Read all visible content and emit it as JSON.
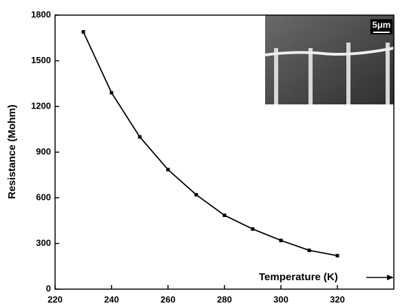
{
  "chart_data": {
    "type": "line",
    "x_label": "Temperature (K)",
    "y_label": "Resistance (Mohm)",
    "inset_label": "5μm",
    "x": [
      230,
      240,
      250,
      260,
      270,
      280,
      290,
      300,
      310,
      320
    ],
    "series": [
      {
        "color": "#000000",
        "values": [
          1690,
          1290,
          1000,
          785,
          620,
          485,
          395,
          320,
          255,
          220
        ]
      }
    ],
    "xlim": [
      220,
      340
    ],
    "xticks": [
      220,
      240,
      260,
      280,
      300,
      320
    ],
    "ylim": [
      0,
      1800
    ],
    "yticks": [
      0,
      300,
      600,
      900,
      1200,
      1500,
      1800
    ]
  }
}
